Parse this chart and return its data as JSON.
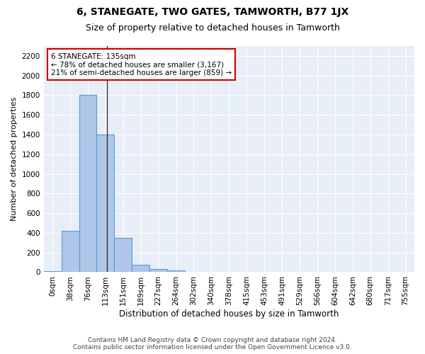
{
  "title": "6, STANEGATE, TWO GATES, TAMWORTH, B77 1JX",
  "subtitle": "Size of property relative to detached houses in Tamworth",
  "xlabel": "Distribution of detached houses by size in Tamworth",
  "ylabel": "Number of detached properties",
  "bin_labels": [
    "0sqm",
    "38sqm",
    "76sqm",
    "113sqm",
    "151sqm",
    "189sqm",
    "227sqm",
    "264sqm",
    "302sqm",
    "340sqm",
    "378sqm",
    "415sqm",
    "453sqm",
    "491sqm",
    "529sqm",
    "566sqm",
    "604sqm",
    "642sqm",
    "680sqm",
    "717sqm",
    "755sqm"
  ],
  "bar_heights": [
    10,
    420,
    1800,
    1400,
    350,
    75,
    35,
    20,
    5,
    0,
    0,
    0,
    0,
    0,
    0,
    0,
    0,
    0,
    0,
    0,
    0
  ],
  "bar_color": "#aec6e8",
  "bar_edge_color": "#5b9bd5",
  "property_line_x": 3.58,
  "property_line_color": "#333333",
  "annotation_text": "6 STANEGATE: 135sqm\n← 78% of detached houses are smaller (3,167)\n21% of semi-detached houses are larger (859) →",
  "annotation_box_color": "#ffffff",
  "annotation_box_edge": "#cc0000",
  "ylim": [
    0,
    2300
  ],
  "yticks": [
    0,
    200,
    400,
    600,
    800,
    1000,
    1200,
    1400,
    1600,
    1800,
    2000,
    2200
  ],
  "background_color": "#e8eef7",
  "footer_line1": "Contains HM Land Registry data © Crown copyright and database right 2024.",
  "footer_line2": "Contains public sector information licensed under the Open Government Licence v3.0.",
  "title_fontsize": 10,
  "subtitle_fontsize": 9,
  "xlabel_fontsize": 8.5,
  "ylabel_fontsize": 8,
  "tick_fontsize": 7.5,
  "annotation_fontsize": 7.5,
  "footer_fontsize": 6.5
}
